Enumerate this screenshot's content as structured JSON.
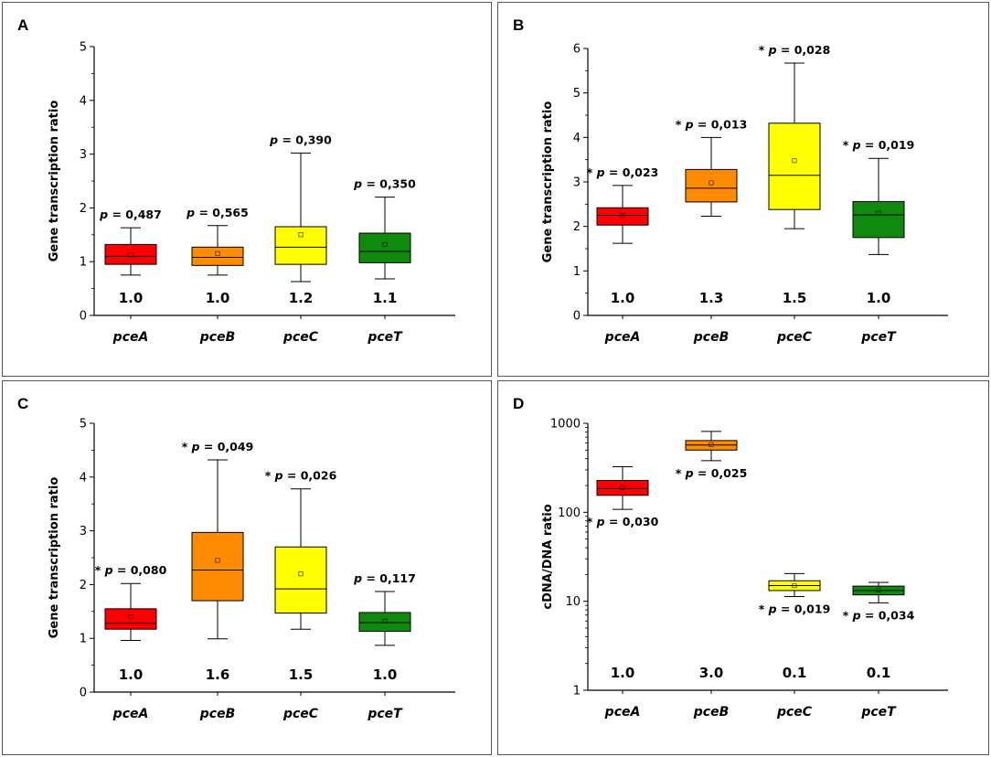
{
  "colors": {
    "pceA": "#ff0000",
    "pceB": "#ff8c00",
    "pceC": "#ffff00",
    "pceT": "#0f8a0f"
  },
  "chart_data": [
    {
      "panel": "A",
      "type": "box",
      "ylabel": "Gene transcription ratio",
      "scale": "linear",
      "ylim": [
        0,
        5
      ],
      "yticks": [
        "0",
        "1",
        "2",
        "3",
        "4",
        "5"
      ],
      "ytick_values": [
        0,
        1,
        2,
        3,
        4,
        5
      ],
      "categories": [
        "pceA",
        "pceB",
        "pceC",
        "pceT"
      ],
      "boxes": [
        {
          "min": 0.75,
          "q1": 0.95,
          "median": 1.1,
          "q3": 1.32,
          "max": 1.63,
          "mean": 1.13,
          "p": "p = 0,487",
          "star": false,
          "ratio": "1.0",
          "p_pos": "above"
        },
        {
          "min": 0.75,
          "q1": 0.93,
          "median": 1.08,
          "q3": 1.27,
          "max": 1.67,
          "mean": 1.15,
          "p": "p = 0,565",
          "star": false,
          "ratio": "1.0",
          "p_pos": "above"
        },
        {
          "min": 0.63,
          "q1": 0.95,
          "median": 1.27,
          "q3": 1.65,
          "max": 3.02,
          "mean": 1.5,
          "p": "p = 0,390",
          "star": false,
          "ratio": "1.2",
          "p_pos": "above"
        },
        {
          "min": 0.68,
          "q1": 0.98,
          "median": 1.19,
          "q3": 1.53,
          "max": 2.2,
          "mean": 1.32,
          "p": "p = 0,350",
          "star": false,
          "ratio": "1.1",
          "p_pos": "above"
        }
      ]
    },
    {
      "panel": "B",
      "type": "box",
      "ylabel": "Gene transcription ratio",
      "scale": "linear",
      "ylim": [
        0,
        6
      ],
      "yticks": [
        "0",
        "1",
        "2",
        "3",
        "4",
        "5",
        "6"
      ],
      "ytick_values": [
        0,
        1,
        2,
        3,
        4,
        5,
        6
      ],
      "categories": [
        "pceA",
        "pceB",
        "pceC",
        "pceT"
      ],
      "boxes": [
        {
          "min": 1.62,
          "q1": 2.03,
          "median": 2.25,
          "q3": 2.42,
          "max": 2.92,
          "mean": 2.25,
          "p": "p = 0,023",
          "star": true,
          "ratio": "1.0",
          "p_pos": "above"
        },
        {
          "min": 2.23,
          "q1": 2.55,
          "median": 2.86,
          "q3": 3.28,
          "max": 4.0,
          "mean": 2.98,
          "p": "p = 0,013",
          "star": true,
          "ratio": "1.3",
          "p_pos": "above"
        },
        {
          "min": 1.95,
          "q1": 2.38,
          "median": 3.15,
          "q3": 4.32,
          "max": 5.67,
          "mean": 3.48,
          "p": "p = 0,028",
          "star": true,
          "ratio": "1.5",
          "p_pos": "above"
        },
        {
          "min": 1.37,
          "q1": 1.75,
          "median": 2.26,
          "q3": 2.56,
          "max": 3.53,
          "mean": 2.3,
          "p": "p = 0,019",
          "star": true,
          "ratio": "1.0",
          "p_pos": "above"
        }
      ]
    },
    {
      "panel": "C",
      "type": "box",
      "ylabel": "Gene transcription ratio",
      "scale": "linear",
      "ylim": [
        0,
        5
      ],
      "yticks": [
        "0",
        "1",
        "2",
        "3",
        "4",
        "5"
      ],
      "ytick_values": [
        0,
        1,
        2,
        3,
        4,
        5
      ],
      "categories": [
        "pceA",
        "pceB",
        "pceC",
        "pceT"
      ],
      "boxes": [
        {
          "min": 0.96,
          "q1": 1.17,
          "median": 1.28,
          "q3": 1.55,
          "max": 2.02,
          "mean": 1.4,
          "p": "p = 0,080",
          "star": true,
          "ratio": "1.0",
          "p_pos": "above"
        },
        {
          "min": 0.99,
          "q1": 1.7,
          "median": 2.27,
          "q3": 2.97,
          "max": 4.32,
          "mean": 2.45,
          "p": "p = 0,049",
          "star": true,
          "ratio": "1.6",
          "p_pos": "above"
        },
        {
          "min": 1.17,
          "q1": 1.47,
          "median": 1.92,
          "q3": 2.7,
          "max": 3.78,
          "mean": 2.2,
          "p": "p = 0,026",
          "star": true,
          "ratio": "1.5",
          "p_pos": "above"
        },
        {
          "min": 0.87,
          "q1": 1.13,
          "median": 1.29,
          "q3": 1.48,
          "max": 1.87,
          "mean": 1.32,
          "p": "p = 0,117",
          "star": false,
          "ratio": "1.0",
          "p_pos": "above"
        }
      ]
    },
    {
      "panel": "D",
      "type": "box",
      "ylabel": "cDNA/DNA ratio",
      "scale": "log",
      "ylim": [
        1,
        1000
      ],
      "yticks": [
        "1",
        "10",
        "100",
        "1000"
      ],
      "ytick_values": [
        1,
        10,
        100,
        1000
      ],
      "categories": [
        "pceA",
        "pceB",
        "pceC",
        "pceT"
      ],
      "boxes": [
        {
          "min": 108,
          "q1": 155,
          "median": 185,
          "q3": 228,
          "max": 325,
          "mean": 190,
          "p": "p = 0,030",
          "star": true,
          "ratio": "1.0",
          "p_pos": "below"
        },
        {
          "min": 380,
          "q1": 500,
          "median": 570,
          "q3": 640,
          "max": 810,
          "mean": 575,
          "p": "p = 0,025",
          "star": true,
          "ratio": "3.0",
          "p_pos": "below"
        },
        {
          "min": 11.3,
          "q1": 13.2,
          "median": 15.0,
          "q3": 17.0,
          "max": 20.5,
          "mean": 15.0,
          "p": "p = 0,019",
          "star": true,
          "ratio": "0.1",
          "p_pos": "below"
        },
        {
          "min": 9.6,
          "q1": 11.8,
          "median": 13.2,
          "q3": 14.8,
          "max": 16.3,
          "mean": 13.4,
          "p": "p = 0,034",
          "star": true,
          "ratio": "0.1",
          "p_pos": "below"
        }
      ]
    }
  ]
}
